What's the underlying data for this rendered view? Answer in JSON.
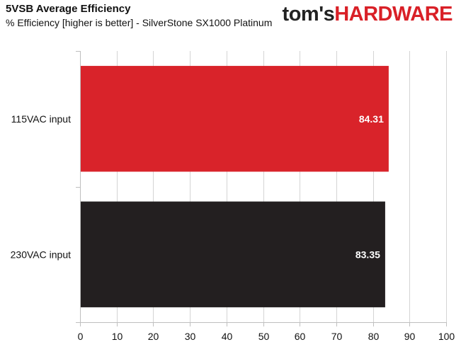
{
  "header": {
    "title": "5VSB Average Efficiency",
    "subtitle": "% Efficiency [higher is better] - SilverStone SX1000 Platinum"
  },
  "logo": {
    "part_a": "tom's",
    "part_b": "HARDWARE",
    "colors": {
      "part_a": "#222222",
      "part_b": "#d92027"
    }
  },
  "chart_data": {
    "type": "bar",
    "orientation": "horizontal",
    "title": "5VSB Average Efficiency",
    "subtitle": "% Efficiency [higher is better] - SilverStone SX1000 Platinum",
    "categories": [
      "115VAC input",
      "230VAC input"
    ],
    "values": [
      84.31,
      83.35
    ],
    "value_labels": [
      "84.31",
      "83.35"
    ],
    "bar_colors": [
      "#d9232a",
      "#231f20"
    ],
    "xlim": [
      0,
      100
    ],
    "xticks": [
      0,
      10,
      20,
      30,
      40,
      50,
      60,
      70,
      80,
      90,
      100
    ],
    "xlabel": "",
    "ylabel": "",
    "grid": "vertical",
    "legend": "none"
  }
}
